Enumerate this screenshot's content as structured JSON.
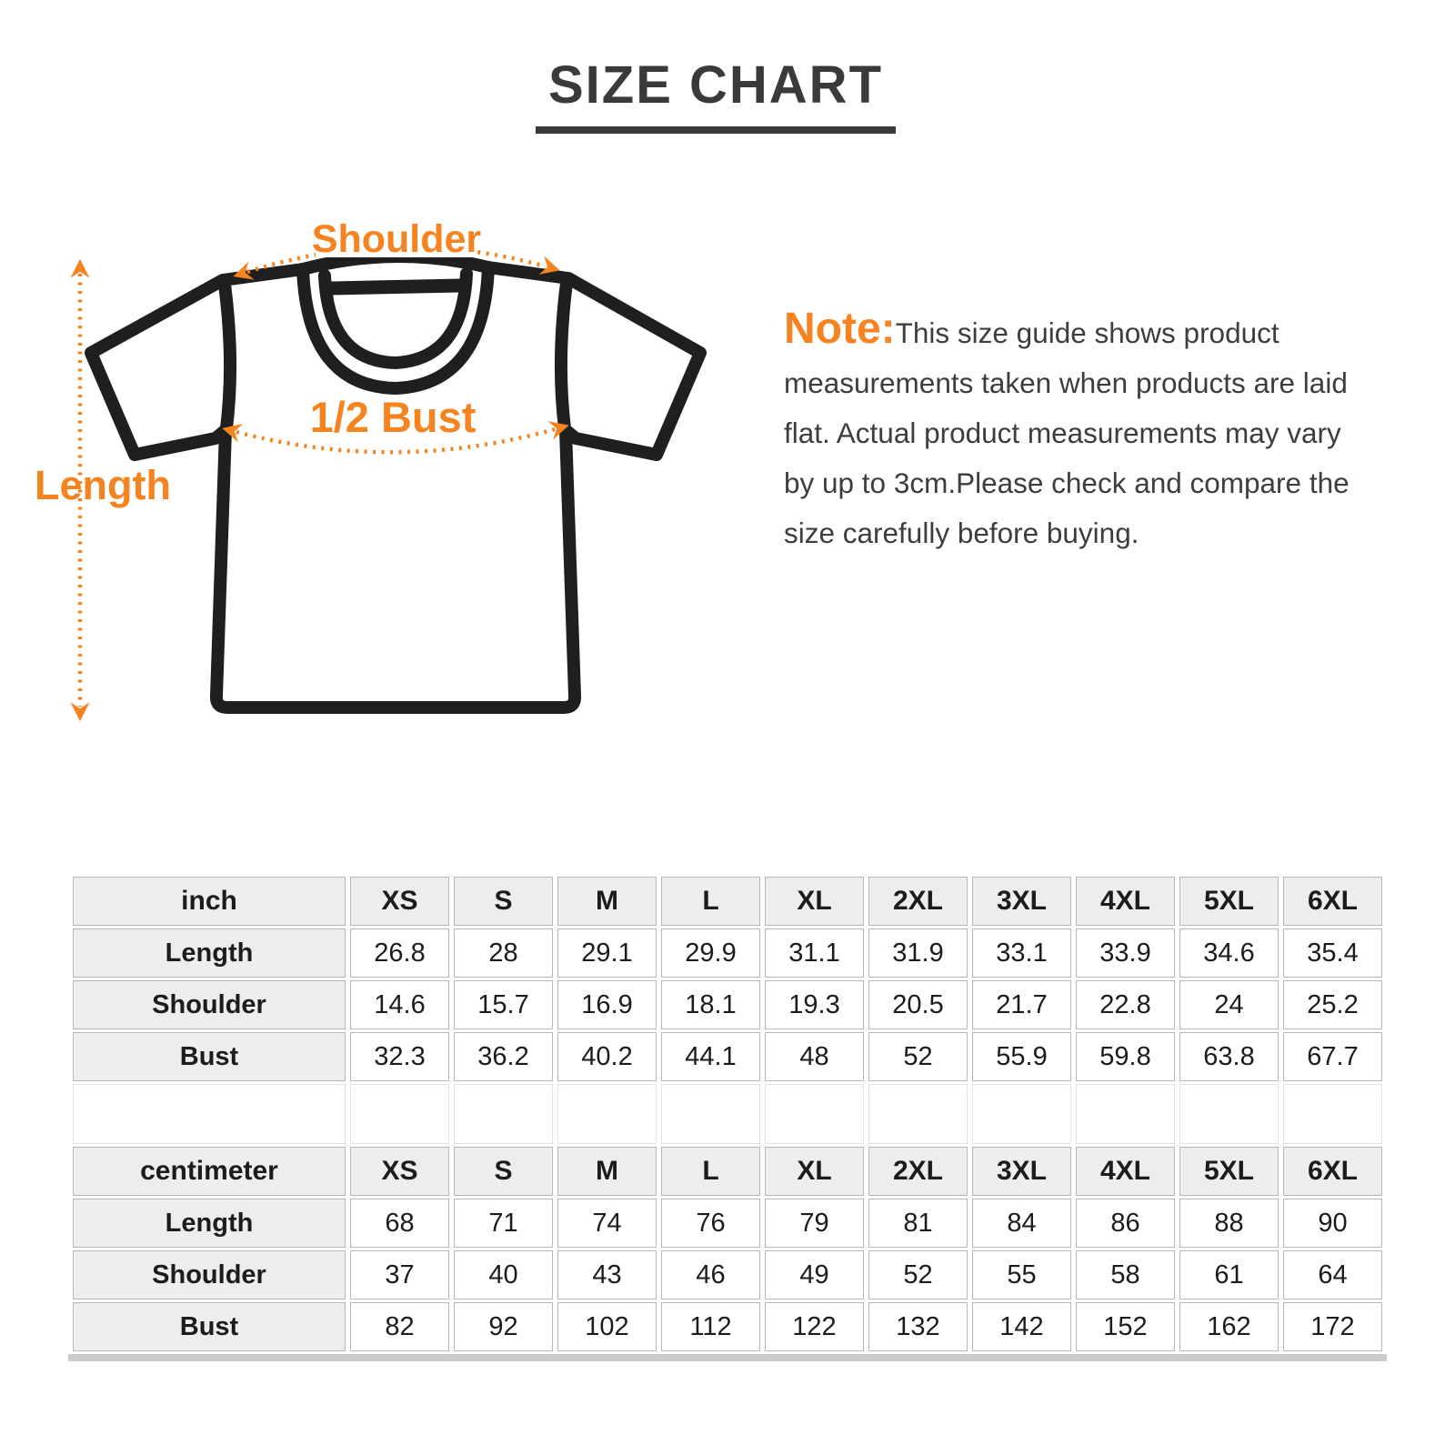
{
  "title": "SIZE CHART",
  "note": {
    "label": "Note:",
    "text": "This size guide shows product measurements taken when products are laid flat. Actual product measurements may vary by up to 3cm.Please check and compare the size carefully before buying."
  },
  "diagram": {
    "labels": {
      "shoulder": "Shoulder",
      "half_bust": "1/2 Bust",
      "length": "Length"
    }
  },
  "colors": {
    "accent": "#F5831F",
    "title_text": "#3A3A3A",
    "table_header_bg": "#EDEDED",
    "table_border": "#B7B7B7"
  },
  "size_tables": [
    {
      "unit_label": "inch",
      "sizes": [
        "XS",
        "S",
        "M",
        "L",
        "XL",
        "2XL",
        "3XL",
        "4XL",
        "5XL",
        "6XL"
      ],
      "rows": [
        {
          "label": "Length",
          "values": [
            "26.8",
            "28",
            "29.1",
            "29.9",
            "31.1",
            "31.9",
            "33.1",
            "33.9",
            "34.6",
            "35.4"
          ]
        },
        {
          "label": "Shoulder",
          "values": [
            "14.6",
            "15.7",
            "16.9",
            "18.1",
            "19.3",
            "20.5",
            "21.7",
            "22.8",
            "24",
            "25.2"
          ]
        },
        {
          "label": "Bust",
          "values": [
            "32.3",
            "36.2",
            "40.2",
            "44.1",
            "48",
            "52",
            "55.9",
            "59.8",
            "63.8",
            "67.7"
          ]
        }
      ]
    },
    {
      "unit_label": "centimeter",
      "sizes": [
        "XS",
        "S",
        "M",
        "L",
        "XL",
        "2XL",
        "3XL",
        "4XL",
        "5XL",
        "6XL"
      ],
      "rows": [
        {
          "label": "Length",
          "values": [
            "68",
            "71",
            "74",
            "76",
            "79",
            "81",
            "84",
            "86",
            "88",
            "90"
          ]
        },
        {
          "label": "Shoulder",
          "values": [
            "37",
            "40",
            "43",
            "46",
            "49",
            "52",
            "55",
            "58",
            "61",
            "64"
          ]
        },
        {
          "label": "Bust",
          "values": [
            "82",
            "92",
            "102",
            "112",
            "122",
            "132",
            "142",
            "152",
            "162",
            "172"
          ]
        }
      ]
    }
  ]
}
